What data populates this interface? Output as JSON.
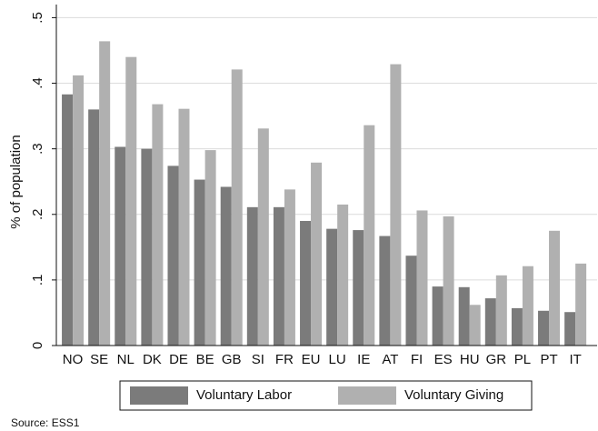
{
  "chart_data": {
    "type": "bar",
    "y_label": "% of population",
    "categories": [
      "NO",
      "SE",
      "NL",
      "DK",
      "DE",
      "BE",
      "GB",
      "SI",
      "FR",
      "EU",
      "LU",
      "IE",
      "AT",
      "FI",
      "ES",
      "HU",
      "GR",
      "PL",
      "PT",
      "IT"
    ],
    "series": [
      {
        "name": "Voluntary Labor",
        "color": "#7b7b7b",
        "values": [
          0.383,
          0.36,
          0.303,
          0.3,
          0.274,
          0.253,
          0.242,
          0.211,
          0.211,
          0.19,
          0.178,
          0.176,
          0.167,
          0.137,
          0.09,
          0.089,
          0.072,
          0.057,
          0.053,
          0.051
        ]
      },
      {
        "name": "Voluntary Giving",
        "color": "#b0b0b0",
        "values": [
          0.412,
          0.464,
          0.44,
          0.368,
          0.361,
          0.298,
          0.421,
          0.331,
          0.238,
          0.279,
          0.215,
          0.336,
          0.429,
          0.206,
          0.197,
          0.062,
          0.107,
          0.121,
          0.175,
          0.125
        ]
      }
    ],
    "ylim": [
      0,
      0.52
    ],
    "yticks": [
      0,
      {
        "value": 0.1,
        "label": ".1"
      },
      {
        "value": 0.2,
        "label": ".2"
      },
      {
        "value": 0.3,
        "label": ".3"
      },
      {
        "value": 0.4,
        "label": ".4"
      },
      {
        "value": 0.5,
        "label": ".5"
      }
    ],
    "grid": true,
    "legend": "bottom",
    "source": "Source: ESS1"
  }
}
